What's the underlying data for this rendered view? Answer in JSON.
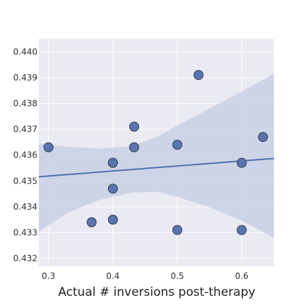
{
  "chart_data": {
    "type": "scatter",
    "title": "",
    "xlabel": "Actual # inversions post-therapy",
    "ylabel": "",
    "xlim": [
      0.285,
      0.65
    ],
    "ylim": [
      0.4317,
      0.4405
    ],
    "xticks": [
      0.3,
      0.4,
      0.5,
      0.6
    ],
    "xtick_labels": [
      "0.3",
      "0.4",
      "0.5",
      "0.6"
    ],
    "yticks": [
      0.432,
      0.433,
      0.434,
      0.435,
      0.436,
      0.437,
      0.438,
      0.439,
      0.44
    ],
    "ytick_labels": [
      "0.432",
      "0.433",
      "0.434",
      "0.435",
      "0.436",
      "0.437",
      "0.438",
      "0.439",
      "0.440"
    ],
    "grid": true,
    "background": "#eaeaf2",
    "point_color": "#5975b0",
    "line_color": "#4c72b0",
    "band_color": "#c4cce3",
    "points": [
      {
        "x": 0.3,
        "y": 0.4363
      },
      {
        "x": 0.367,
        "y": 0.4334
      },
      {
        "x": 0.4,
        "y": 0.4335
      },
      {
        "x": 0.4,
        "y": 0.4347
      },
      {
        "x": 0.4,
        "y": 0.4357
      },
      {
        "x": 0.4,
        "y": 0.4357
      },
      {
        "x": 0.433,
        "y": 0.4363
      },
      {
        "x": 0.433,
        "y": 0.4371
      },
      {
        "x": 0.5,
        "y": 0.4331
      },
      {
        "x": 0.5,
        "y": 0.4364
      },
      {
        "x": 0.533,
        "y": 0.4391
      },
      {
        "x": 0.6,
        "y": 0.4331
      },
      {
        "x": 0.6,
        "y": 0.4357
      },
      {
        "x": 0.633,
        "y": 0.4367
      }
    ],
    "regression": {
      "x": [
        0.285,
        0.65
      ],
      "y": [
        0.43516,
        0.43587
      ]
    },
    "confidence_band": {
      "x": [
        0.285,
        0.33,
        0.38,
        0.43,
        0.47,
        0.5,
        0.55,
        0.6,
        0.65
      ],
      "upper": [
        0.43645,
        0.43632,
        0.43625,
        0.43635,
        0.43672,
        0.43715,
        0.4378,
        0.43846,
        0.43915
      ],
      "lower": [
        0.43305,
        0.43376,
        0.43428,
        0.43455,
        0.43458,
        0.43438,
        0.43398,
        0.43346,
        0.4328
      ]
    }
  }
}
